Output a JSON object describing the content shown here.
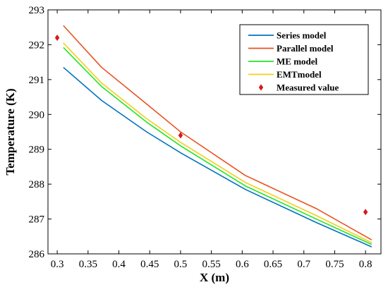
{
  "chart_data": {
    "type": "line",
    "title": "",
    "xlabel": "X (m)",
    "ylabel": "Temperature (K)",
    "xlim": [
      0.285,
      0.825
    ],
    "ylim": [
      286,
      293
    ],
    "xticks": [
      "0.3",
      "0.35",
      "0.4",
      "0.45",
      "0.5",
      "0.55",
      "0.6",
      "0.65",
      "0.7",
      "0.75",
      "0.8"
    ],
    "yticks": [
      "286",
      "287",
      "288",
      "289",
      "290",
      "291",
      "292",
      "293"
    ],
    "grid": false,
    "legend_position": "top-right",
    "series": [
      {
        "name": "Series model",
        "kind": "line",
        "color": "#0072BD",
        "x": [
          0.31,
          0.372,
          0.445,
          0.5,
          0.605,
          0.72,
          0.81
        ],
        "y": [
          291.35,
          290.4,
          289.5,
          288.9,
          287.85,
          286.9,
          286.2
        ]
      },
      {
        "name": "Parallel model",
        "kind": "line",
        "color": "#E8531F",
        "x": [
          0.31,
          0.372,
          0.445,
          0.5,
          0.605,
          0.72,
          0.81
        ],
        "y": [
          292.55,
          291.35,
          290.3,
          289.5,
          288.25,
          287.3,
          286.4
        ]
      },
      {
        "name": "ME model",
        "kind": "line",
        "color": "#22E622",
        "x": [
          0.31,
          0.372,
          0.445,
          0.5,
          0.605,
          0.72,
          0.81
        ],
        "y": [
          291.92,
          290.8,
          289.78,
          289.1,
          287.95,
          287.0,
          286.27
        ]
      },
      {
        "name": "EMTmodel",
        "kind": "line",
        "color": "#F2CF1B",
        "x": [
          0.31,
          0.372,
          0.445,
          0.5,
          0.605,
          0.72,
          0.81
        ],
        "y": [
          292.05,
          290.9,
          289.88,
          289.2,
          288.05,
          287.1,
          286.32
        ]
      },
      {
        "name": "Measured value",
        "kind": "scatter",
        "color": "#D7191C",
        "x": [
          0.3,
          0.5,
          0.8
        ],
        "y": [
          292.2,
          289.4,
          287.2
        ]
      }
    ]
  }
}
